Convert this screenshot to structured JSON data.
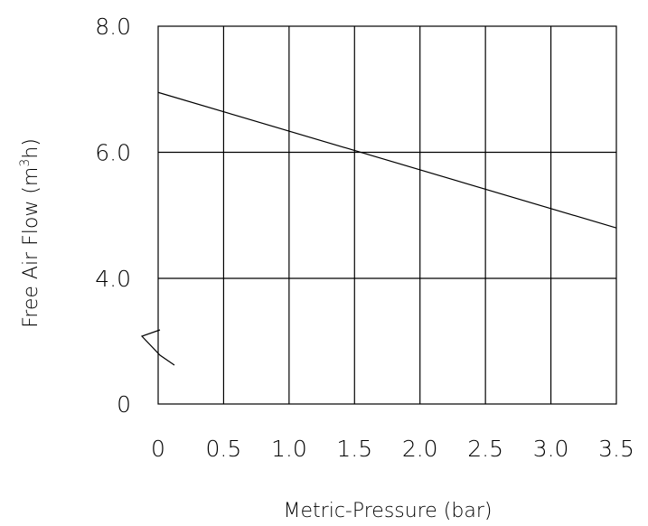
{
  "chart_data": {
    "type": "line",
    "title": "",
    "xlabel": "Metric-Pressure (bar)",
    "ylabel": {
      "prefix": "Free Air Flow (m",
      "superscript": "3",
      "suffix": "h)"
    },
    "xlim": [
      0,
      3.5
    ],
    "x_ticks": [
      0,
      0.5,
      1.0,
      1.5,
      2.0,
      2.5,
      3.0,
      3.5
    ],
    "x_tick_labels": [
      "0",
      "0.5",
      "1.0",
      "1.5",
      "2.0",
      "2.5",
      "3.0",
      "3.5"
    ],
    "y_ticks": [
      0,
      4.0,
      6.0,
      8.0
    ],
    "y_tick_labels": [
      "0",
      "4.0",
      "6.0",
      "8.0"
    ],
    "y_axis_break": true,
    "y_break_between": [
      0,
      4.0
    ],
    "grid": true,
    "series": [
      {
        "x": [
          0,
          3.5
        ],
        "y": [
          6.95,
          4.8
        ]
      }
    ]
  }
}
